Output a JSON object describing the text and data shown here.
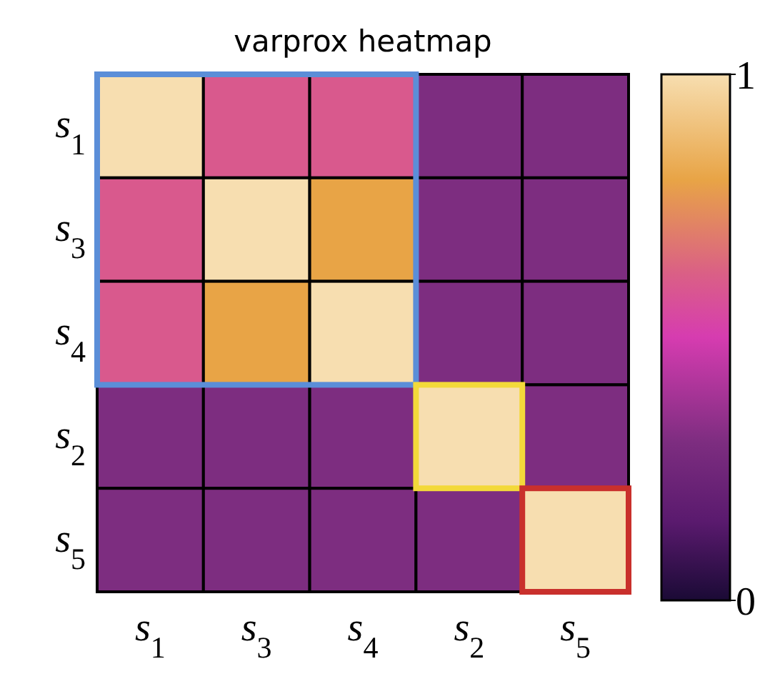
{
  "chart_data": {
    "type": "heatmap",
    "title": "varprox heatmap",
    "categories": [
      "s$_{1}$",
      "s$_{3}$",
      "s$_{4}$",
      "s$_{2}$",
      "s$_{5}$"
    ],
    "y_categories": [
      "s$_{1}$",
      "s$_{3}$",
      "s$_{4}$",
      "s$_{2}$",
      "s$_{5}$"
    ],
    "cells": [
      [
        1,
        0.6,
        0.6,
        0.3,
        0.3
      ],
      [
        0.6,
        1,
        0.8,
        0.3,
        0.3
      ],
      [
        0.6,
        0.8,
        1,
        0.3,
        0.3
      ],
      [
        0.3,
        0.3,
        0.3,
        1,
        0.3
      ],
      [
        0.3,
        0.3,
        0.3,
        0.3,
        1
      ]
    ],
    "clim": [
      0,
      1
    ],
    "cticks": [
      0,
      1
    ]
  }
}
